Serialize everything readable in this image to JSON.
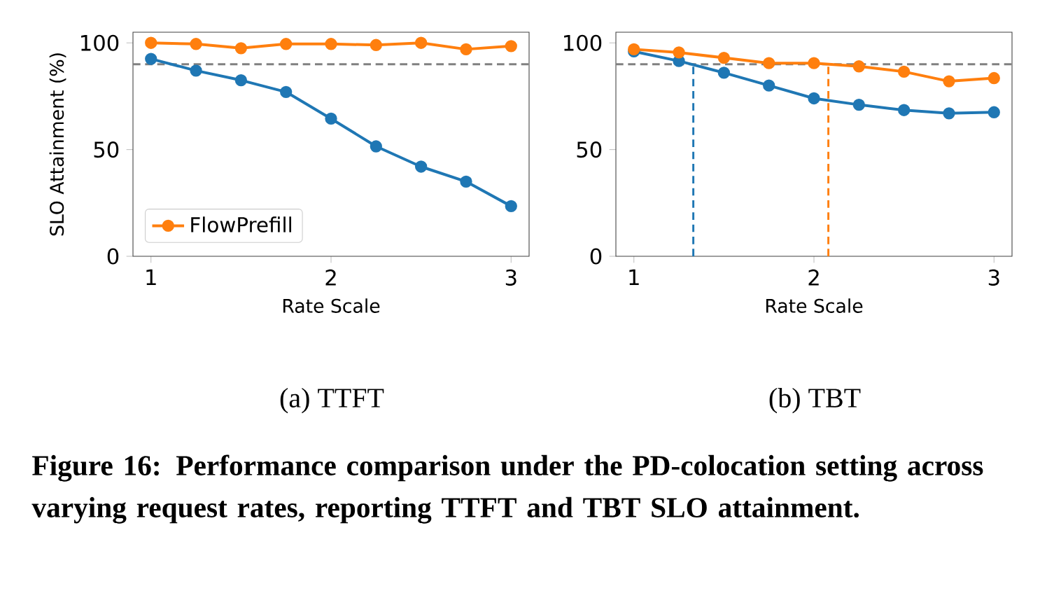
{
  "chart_data": [
    {
      "type": "line",
      "title": "(a) TTFT",
      "xlabel": "Rate Scale",
      "ylabel": "SLO Attainment (%)",
      "x": [
        1,
        1.25,
        1.5,
        1.75,
        2,
        2.25,
        2.5,
        2.75,
        3
      ],
      "series": [
        {
          "color": "#1f77b4",
          "values": [
            92.5,
            87,
            82.5,
            77,
            64.5,
            51.5,
            42,
            35,
            23.5
          ]
        },
        {
          "name": "FlowPrefill",
          "color": "#ff7f0e",
          "values": [
            100,
            99.5,
            97.5,
            99.5,
            99.5,
            99,
            100,
            97,
            98.5
          ]
        }
      ],
      "xlim": [
        0.9,
        3.1
      ],
      "ylim": [
        0,
        105
      ],
      "xticks": [
        1,
        2,
        3
      ],
      "yticks": [
        0,
        50,
        100
      ],
      "marker": "circle",
      "line_style": "solid",
      "legend": "bottom left",
      "ref_lines": [
        {
          "axis": "y",
          "value": 90,
          "color": "#808080",
          "line_style": "dashed"
        }
      ],
      "annotations": [
        "Figure 16: Performance comparison under the PD-colocation setting across varying request rates, reporting TTFT and TBT SLO attainment."
      ]
    },
    {
      "type": "line",
      "title": "(b) TBT",
      "xlabel": "Rate Scale",
      "x": [
        1,
        1.25,
        1.5,
        1.75,
        2,
        2.25,
        2.5,
        2.75,
        3
      ],
      "series": [
        {
          "color": "#1f77b4",
          "values": [
            96,
            91.5,
            86,
            80,
            74,
            71,
            68.5,
            67,
            67.5
          ]
        },
        {
          "color": "#ff7f0e",
          "values": [
            97,
            95.5,
            93,
            90.5,
            90.5,
            89,
            86.5,
            82,
            83.5
          ]
        }
      ],
      "xlim": [
        0.9,
        3.1
      ],
      "ylim": [
        0,
        105
      ],
      "xticks": [
        1,
        2,
        3
      ],
      "yticks": [
        0,
        50,
        100
      ],
      "marker": "circle",
      "line_style": "solid",
      "ref_lines": [
        {
          "axis": "y",
          "value": 90,
          "color": "#808080",
          "line_style": "dashed"
        },
        {
          "axis": "x",
          "value": 1.33,
          "color": "#1f77b4",
          "line_style": "dashed"
        },
        {
          "axis": "x",
          "value": 2.08,
          "color": "#ff7f0e",
          "line_style": "dashed"
        }
      ]
    }
  ]
}
